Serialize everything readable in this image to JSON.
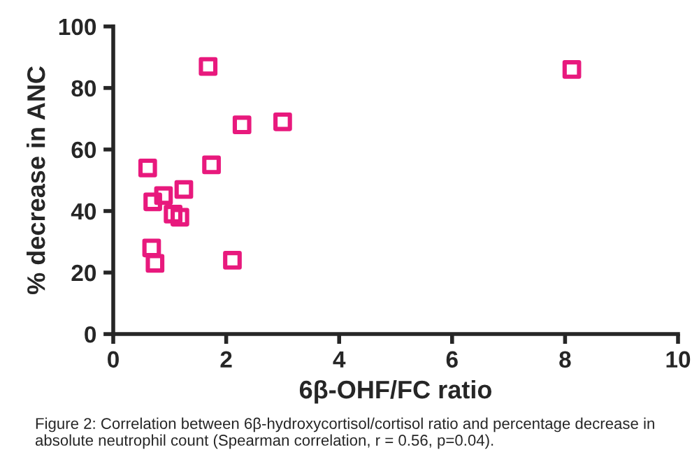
{
  "chart_data": {
    "type": "scatter",
    "xlabel": "6β-OHF/FC ratio",
    "ylabel": "% decrease in ANC",
    "x": [
      1.68,
      2.28,
      3.0,
      0.61,
      1.74,
      0.89,
      0.7,
      1.25,
      1.06,
      1.18,
      0.68,
      0.74,
      2.11,
      8.12
    ],
    "values": [
      87,
      68,
      69,
      54,
      55,
      45,
      43,
      47,
      39,
      38,
      28,
      23,
      24,
      86
    ],
    "color": "#e8197d",
    "marker": "square",
    "xlim": [
      0,
      10
    ],
    "xticks": [
      0,
      2,
      4,
      6,
      8,
      10
    ],
    "ylim": [
      0,
      100
    ],
    "yticks": [
      0,
      20,
      40,
      60,
      80,
      100
    ],
    "grid": false,
    "annotations": [
      "Figure 2: Correlation between 6β-hydroxycortisol/cortisol ratio and percentage decrease in absolute neutrophil count (Spearman correlation, r = 0.56, p=0.04)."
    ]
  }
}
